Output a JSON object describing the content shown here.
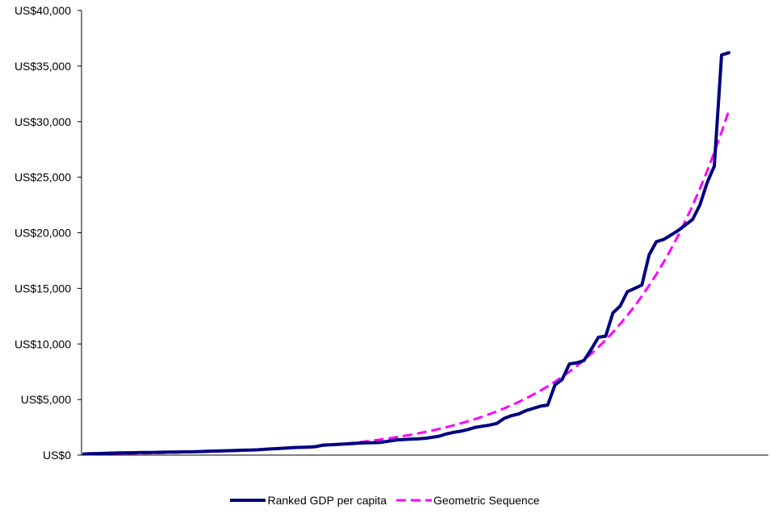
{
  "chart_data": {
    "type": "line",
    "title": "",
    "xlabel": "",
    "ylabel": "",
    "ylim": [
      0,
      40000
    ],
    "y_ticks": [
      "US$0",
      "US$5,000",
      "US$10,000",
      "US$15,000",
      "US$20,000",
      "US$25,000",
      "US$30,000",
      "US$35,000",
      "US$40,000"
    ],
    "y_tick_values": [
      0,
      5000,
      10000,
      15000,
      20000,
      25000,
      30000,
      35000,
      40000
    ],
    "grid": false,
    "legend_position": "bottom",
    "series": [
      {
        "name": "Ranked GDP per capita",
        "color": "#000080",
        "style": "solid",
        "values": [
          100,
          120,
          140,
          160,
          180,
          200,
          210,
          220,
          230,
          240,
          250,
          260,
          270,
          280,
          290,
          300,
          320,
          340,
          360,
          380,
          400,
          420,
          440,
          460,
          480,
          520,
          560,
          600,
          640,
          680,
          700,
          720,
          760,
          900,
          920,
          960,
          1000,
          1040,
          1080,
          1100,
          1120,
          1150,
          1250,
          1350,
          1400,
          1430,
          1460,
          1500,
          1600,
          1700,
          1900,
          2050,
          2150,
          2300,
          2500,
          2600,
          2700,
          2850,
          3300,
          3550,
          3700,
          4000,
          4200,
          4400,
          4500,
          6300,
          6800,
          8200,
          8300,
          8500,
          9500,
          10600,
          10700,
          12800,
          13400,
          14700,
          15000,
          15300,
          18000,
          19200,
          19400,
          19800,
          20200,
          20700,
          21200,
          22500,
          24500,
          26000,
          36000,
          36200
        ]
      },
      {
        "name": "Geometric Sequence",
        "color": "#FF00FF",
        "style": "dashed",
        "start": 100,
        "end": 31000
      }
    ]
  },
  "legend": {
    "series1_label": "Ranked GDP per capita",
    "series2_label": "Geometric Sequence"
  }
}
